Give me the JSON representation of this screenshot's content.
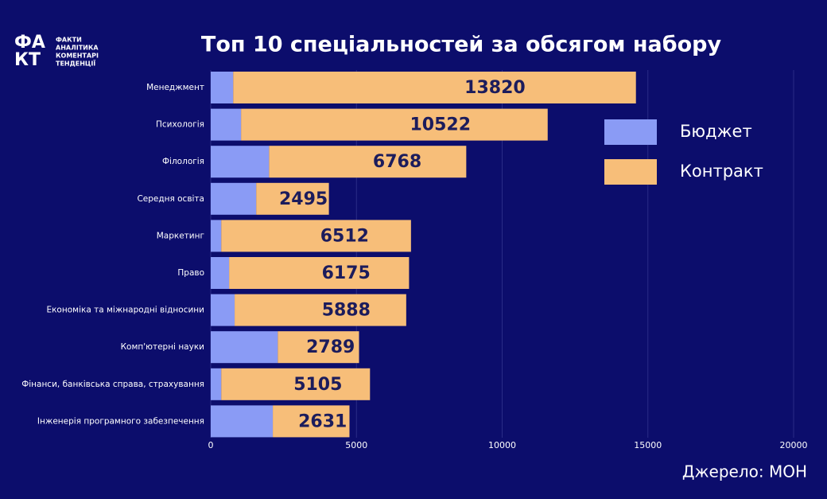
{
  "logo": {
    "mark": [
      "ФА",
      "КТ"
    ],
    "lines": [
      "ФАКТИ",
      "АНАЛІТИКА",
      "КОМЕНТАРІ",
      "ТЕНДЕНЦІЇ"
    ]
  },
  "chart_data": {
    "type": "stacked-barh",
    "title": "Топ 10 спеціальностей за обсягом набору",
    "source": "Джерело: МОН",
    "categories": [
      "Менеджмент",
      "Психологія",
      "Філологія",
      "Середня освіта",
      "Маркетинг",
      "Право",
      "Економіка та міжнародні відносини",
      "Комп'ютерні науки",
      "Фінанси, банківська справа, страхування",
      "Інженерія програмного забезпечення"
    ],
    "series": [
      {
        "name": "Бюджет",
        "color": "#8a9bf5",
        "values": [
          770,
          1040,
          2000,
          1560,
          360,
          630,
          820,
          2300,
          360,
          2130
        ]
      },
      {
        "name": "Контракт",
        "color": "#f7be79",
        "values": [
          13820,
          10522,
          6768,
          2495,
          6512,
          6175,
          5888,
          2789,
          5105,
          2631
        ]
      }
    ],
    "xlim": [
      0,
      20000
    ],
    "xticks": [
      0,
      5000,
      10000,
      15000,
      20000
    ],
    "grid": true,
    "legend": "right",
    "labeled_series": 1
  }
}
